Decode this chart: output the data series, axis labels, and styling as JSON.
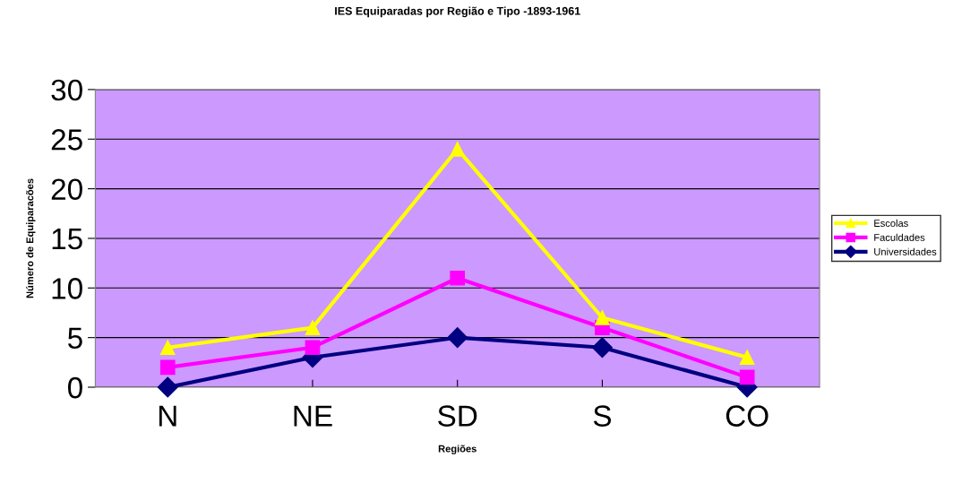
{
  "chart_data": {
    "type": "line",
    "title": "IES Equiparadas por Região e Tipo -1893-1961",
    "xlabel": "Regiões",
    "ylabel": "Número de Equiparacões",
    "categories": [
      "N",
      "NE",
      "SD",
      "S",
      "CO"
    ],
    "series": [
      {
        "name": "Escolas",
        "color": "#ffff00",
        "marker": "triangle",
        "values": [
          4,
          6,
          24,
          7,
          3
        ]
      },
      {
        "name": "Faculdades",
        "color": "#ff00ff",
        "marker": "square",
        "values": [
          2,
          4,
          11,
          6,
          1
        ]
      },
      {
        "name": "Universidades",
        "color": "#000080",
        "marker": "diamond",
        "values": [
          0,
          3,
          5,
          4,
          0
        ]
      }
    ],
    "ylim": [
      0,
      30
    ],
    "yticks": [
      0,
      5,
      10,
      15,
      20,
      25,
      30
    ],
    "grid": "y",
    "legend": "right",
    "line_style": "solid"
  }
}
